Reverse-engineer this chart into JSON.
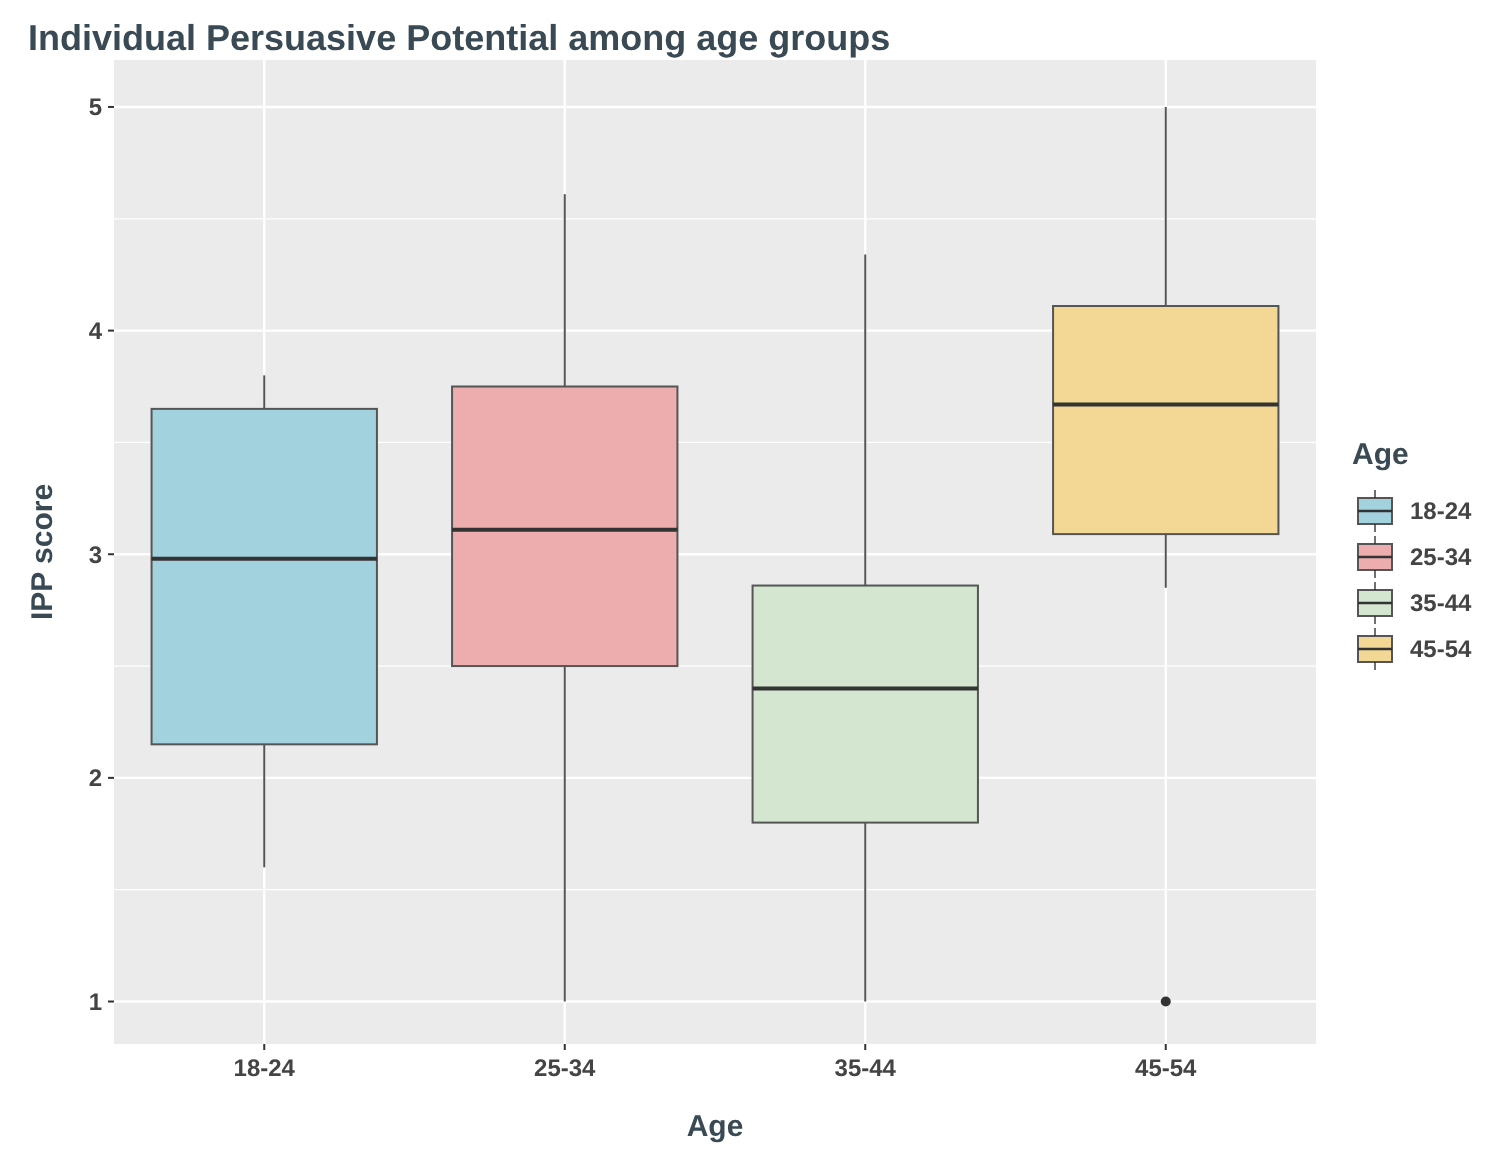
{
  "chart_data": {
    "type": "box",
    "title": "Individual Persuasive Potential among age groups",
    "xlabel": "Age",
    "ylabel": "IPP score",
    "legend_title": "Age",
    "categories": [
      "18-24",
      "25-34",
      "35-44",
      "45-54"
    ],
    "series": [
      {
        "name": "18-24",
        "color": "#a2d2de",
        "boxes": [
          {
            "low": 1.6,
            "q1": 2.15,
            "median": 2.98,
            "q3": 3.65,
            "high": 3.8
          },
          null,
          null,
          null
        ]
      },
      {
        "name": "25-34",
        "color": "#edadaf",
        "boxes": [
          null,
          {
            "low": 1,
            "q1": 2.5,
            "median": 3.11,
            "q3": 3.75,
            "high": 4.61
          },
          null,
          null
        ]
      },
      {
        "name": "35-44",
        "color": "#d4e6cf",
        "boxes": [
          null,
          null,
          {
            "low": 1,
            "q1": 1.8,
            "median": 2.4,
            "q3": 2.86,
            "high": 4.34
          },
          null
        ]
      },
      {
        "name": "45-54",
        "color": "#f2d795",
        "boxes": [
          null,
          null,
          null,
          {
            "low": 2.85,
            "q1": 3.09,
            "median": 3.67,
            "q3": 4.11,
            "high": 5,
            "outliers": [
              1
            ]
          }
        ]
      }
    ],
    "ylim": [
      0.81,
      5.21
    ],
    "yticks": [
      1,
      2,
      3,
      4,
      5
    ],
    "grid": true,
    "legend": "right"
  }
}
